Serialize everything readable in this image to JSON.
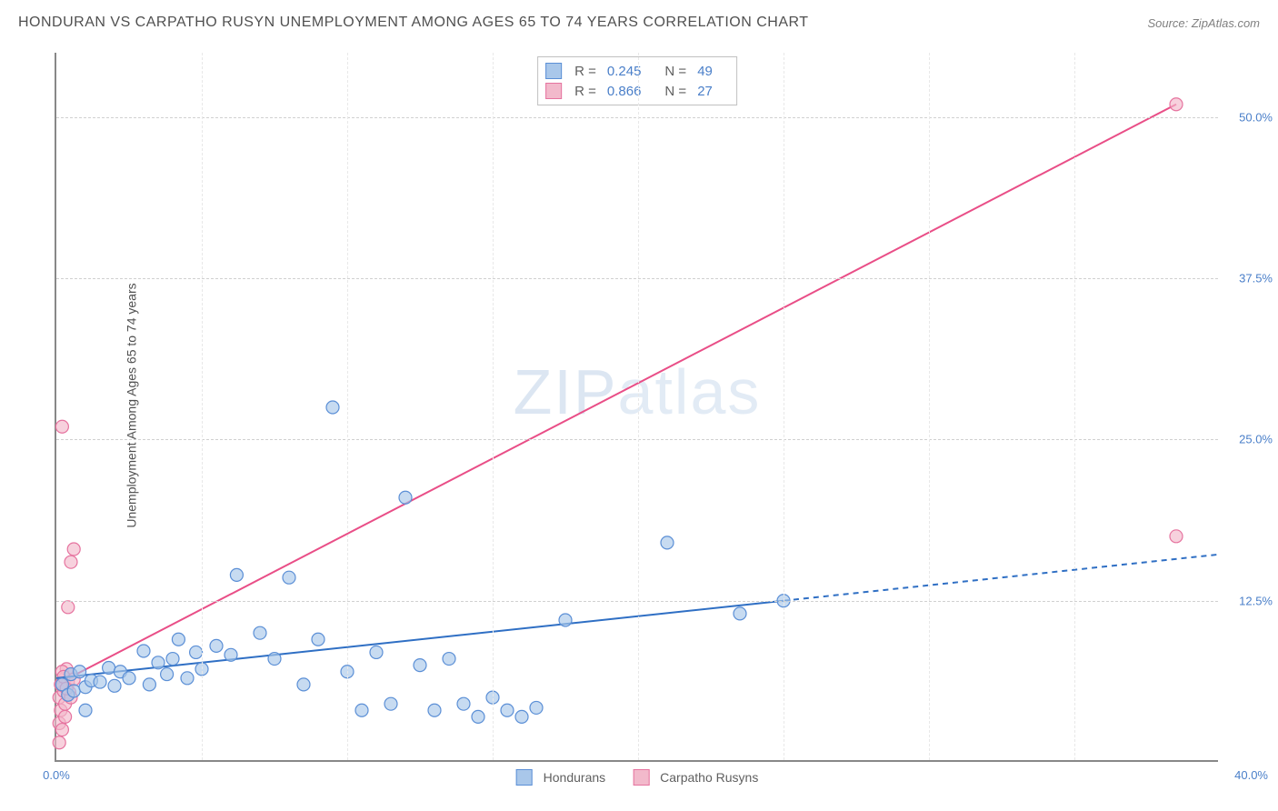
{
  "chart": {
    "type": "scatter-correlation",
    "title": "HONDURAN VS CARPATHO RUSYN UNEMPLOYMENT AMONG AGES 65 TO 74 YEARS CORRELATION CHART",
    "source_label": "Source: ZipAtlas.com",
    "y_axis_label": "Unemployment Among Ages 65 to 74 years",
    "watermark": "ZIPatlas",
    "background_color": "#ffffff",
    "grid_color": "#d8d8d8",
    "axis_color": "#888888",
    "tick_color": "#4a7fc9",
    "title_fontsize": 16,
    "tick_fontsize": 13,
    "xlim": [
      0,
      40
    ],
    "ylim": [
      0,
      55
    ],
    "y_ticks": [
      {
        "v": 12.5,
        "label": "12.5%"
      },
      {
        "v": 25.0,
        "label": "25.0%"
      },
      {
        "v": 37.5,
        "label": "37.5%"
      },
      {
        "v": 50.0,
        "label": "50.0%"
      }
    ],
    "x_ticks_minor": [
      5,
      10,
      15,
      20,
      25,
      30,
      35
    ],
    "x_origin_label": "0.0%",
    "x_max_label": "40.0%",
    "series": [
      {
        "name": "Hondurans",
        "color_fill": "#a9c7ea",
        "color_stroke": "#5b8fd6",
        "marker_radius": 7,
        "fill_opacity": 0.65,
        "r_value": "0.245",
        "n_value": "49",
        "trend": {
          "x1": 0,
          "y1": 6.5,
          "x2": 25,
          "y2": 12.5,
          "dash_x2": 40,
          "dash_y2": 16.1,
          "width": 2,
          "color": "#2f6fc4"
        },
        "points": [
          [
            0.2,
            6.0
          ],
          [
            0.4,
            5.2
          ],
          [
            0.5,
            6.8
          ],
          [
            0.6,
            5.5
          ],
          [
            0.8,
            7.0
          ],
          [
            1.0,
            5.8
          ],
          [
            1.2,
            6.3
          ],
          [
            1.0,
            4.0
          ],
          [
            1.5,
            6.2
          ],
          [
            1.8,
            7.3
          ],
          [
            2.0,
            5.9
          ],
          [
            2.2,
            7.0
          ],
          [
            2.5,
            6.5
          ],
          [
            3.0,
            8.6
          ],
          [
            3.2,
            6.0
          ],
          [
            3.5,
            7.7
          ],
          [
            3.8,
            6.8
          ],
          [
            4.0,
            8.0
          ],
          [
            4.2,
            9.5
          ],
          [
            4.5,
            6.5
          ],
          [
            4.8,
            8.5
          ],
          [
            5.0,
            7.2
          ],
          [
            5.5,
            9.0
          ],
          [
            6.0,
            8.3
          ],
          [
            6.2,
            14.5
          ],
          [
            7.0,
            10.0
          ],
          [
            7.5,
            8.0
          ],
          [
            8.0,
            14.3
          ],
          [
            8.5,
            6.0
          ],
          [
            9.0,
            9.5
          ],
          [
            9.5,
            27.5
          ],
          [
            10.0,
            7.0
          ],
          [
            10.5,
            4.0
          ],
          [
            11.0,
            8.5
          ],
          [
            11.5,
            4.5
          ],
          [
            12.0,
            20.5
          ],
          [
            12.5,
            7.5
          ],
          [
            13.0,
            4.0
          ],
          [
            13.5,
            8.0
          ],
          [
            14.0,
            4.5
          ],
          [
            14.5,
            3.5
          ],
          [
            15.0,
            5.0
          ],
          [
            15.5,
            4.0
          ],
          [
            16.0,
            3.5
          ],
          [
            16.5,
            4.2
          ],
          [
            17.5,
            11.0
          ],
          [
            21.0,
            17.0
          ],
          [
            23.5,
            11.5
          ],
          [
            25.0,
            12.5
          ]
        ]
      },
      {
        "name": "Carpatho Rusyns",
        "color_fill": "#f2b9cb",
        "color_stroke": "#e6739f",
        "marker_radius": 7,
        "fill_opacity": 0.65,
        "r_value": "0.866",
        "n_value": "27",
        "trend": {
          "x1": 0,
          "y1": 6.0,
          "x2": 38.5,
          "y2": 51.0,
          "width": 2,
          "color": "#e94e87"
        },
        "points": [
          [
            0.1,
            5.0
          ],
          [
            0.2,
            6.0
          ],
          [
            0.15,
            4.0
          ],
          [
            0.3,
            6.5
          ],
          [
            0.25,
            5.5
          ],
          [
            0.35,
            7.2
          ],
          [
            0.1,
            3.0
          ],
          [
            0.4,
            6.2
          ],
          [
            0.45,
            5.4
          ],
          [
            0.2,
            7.0
          ],
          [
            0.5,
            6.8
          ],
          [
            0.3,
            4.5
          ],
          [
            0.4,
            5.2
          ],
          [
            0.15,
            6.0
          ],
          [
            0.5,
            5.0
          ],
          [
            0.25,
            6.6
          ],
          [
            0.35,
            5.7
          ],
          [
            0.6,
            6.4
          ],
          [
            0.1,
            1.5
          ],
          [
            0.2,
            2.5
          ],
          [
            0.3,
            3.5
          ],
          [
            0.4,
            12.0
          ],
          [
            0.5,
            15.5
          ],
          [
            0.6,
            16.5
          ],
          [
            0.2,
            26.0
          ],
          [
            38.5,
            51.0
          ],
          [
            38.5,
            17.5
          ]
        ]
      }
    ],
    "legend_bottom": [
      {
        "label": "Hondurans",
        "fill": "#a9c7ea",
        "stroke": "#5b8fd6"
      },
      {
        "label": "Carpatho Rusyns",
        "fill": "#f2b9cb",
        "stroke": "#e6739f"
      }
    ]
  }
}
